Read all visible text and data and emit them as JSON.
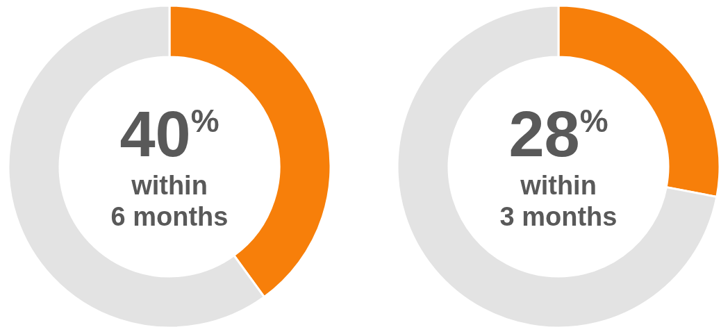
{
  "chart_data": [
    {
      "type": "donut",
      "categories": [
        null,
        null
      ],
      "values": [
        40,
        60
      ],
      "colors": [
        "#f77f0a",
        "#e3e3e3"
      ],
      "annotations": [
        "40$^{%}$",
        "within",
        "6 months"
      ]
    },
    {
      "type": "donut",
      "categories": [
        null,
        null
      ],
      "values": [
        28,
        72
      ],
      "colors": [
        "#f77f0a",
        "#e3e3e3"
      ],
      "annotations": [
        "28$^{%}$",
        "within",
        "3 months"
      ]
    }
  ]
}
